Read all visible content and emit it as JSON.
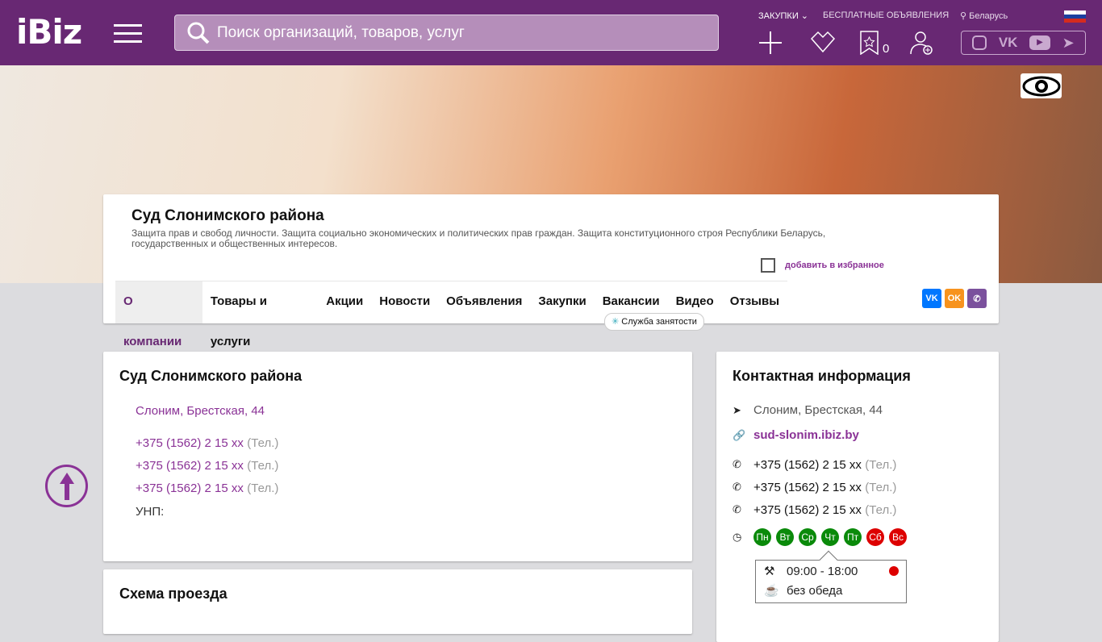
{
  "header": {
    "logo": "iBiz",
    "search_placeholder": "Поиск организаций, товаров, услуг",
    "purchases": "ЗАКУПКИ",
    "free_ads": "БЕСПЛАТНЫЕ ОБЪЯВЛЕНИЯ",
    "region": "Беларусь",
    "favorites_count": "0"
  },
  "company": {
    "title": "Суд Слонимского района",
    "description": "Защита прав и свобод личности. Защита социально экономических и политических прав граждан. Защита конституционного строя Республики Беларусь, государственных и общественных интересов.",
    "add_favorite": "добавить в избранное",
    "tabs": [
      {
        "label": "О компании"
      },
      {
        "label": "Товары и услуги"
      },
      {
        "label": "Акции"
      },
      {
        "label": "Новости"
      },
      {
        "label": "Объявления"
      },
      {
        "label": "Закупки"
      },
      {
        "label": "Вакансии"
      },
      {
        "label": "Видео"
      },
      {
        "label": "Отзывы"
      }
    ],
    "employment_badge": "Служба занятости"
  },
  "main": {
    "title": "Суд Слонимского района",
    "address": "Слоним, Брестская, 44",
    "phones": [
      {
        "number": "+375 (1562) 2 15 xx",
        "type": "(Тел.)"
      },
      {
        "number": "+375 (1562) 2 15 xx",
        "type": "(Тел.)"
      },
      {
        "number": "+375 (1562) 2 15 xx",
        "type": "(Тел.)"
      }
    ],
    "unp_label": "УНП:"
  },
  "route": {
    "title": "Схема проезда"
  },
  "contacts": {
    "title": "Контактная информация",
    "address": "Слоним, Брестская, 44",
    "site": "sud-slonim.ibiz.by",
    "phones": [
      {
        "number": "+375 (1562) 2 15 xx",
        "type": "(Тел.)"
      },
      {
        "number": "+375 (1562) 2 15 xx",
        "type": "(Тел.)"
      },
      {
        "number": "+375 (1562) 2 15 xx",
        "type": "(Тел.)"
      }
    ],
    "days": [
      {
        "label": "Пн",
        "color": "#0a8a0a"
      },
      {
        "label": "Вт",
        "color": "#0a8a0a"
      },
      {
        "label": "Ср",
        "color": "#0a8a0a"
      },
      {
        "label": "Чт",
        "color": "#0a8a0a"
      },
      {
        "label": "Пт",
        "color": "#0a8a0a"
      },
      {
        "label": "Сб",
        "color": "#dd0000"
      },
      {
        "label": "Вс",
        "color": "#dd0000"
      }
    ],
    "hours": "09:00 - 18:00",
    "lunch": "без обеда",
    "status_color": "#dd0000"
  },
  "colors": {
    "brand": "#682873",
    "link": "#8a3296"
  }
}
